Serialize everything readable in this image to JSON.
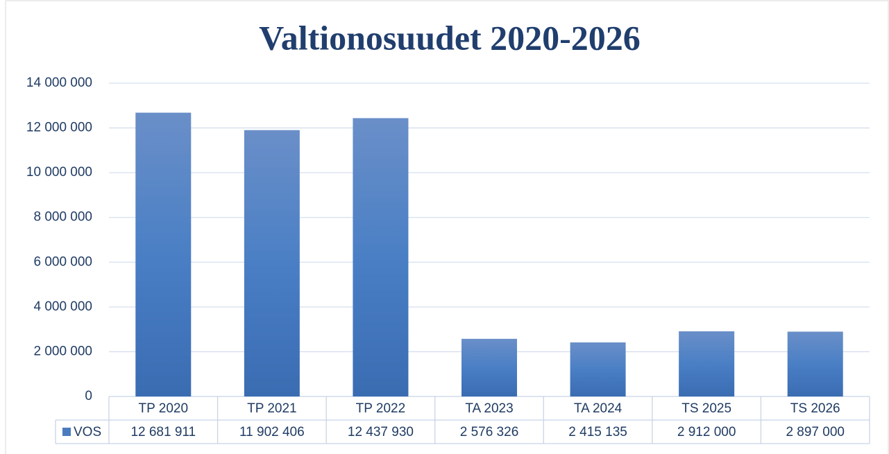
{
  "chart_data": {
    "type": "bar",
    "title": "Valtionosuudet 2020-2026",
    "categories": [
      "TP 2020",
      "TP 2021",
      "TP 2022",
      "TA 2023",
      "TA 2024",
      "TS 2025",
      "TS 2026"
    ],
    "series": [
      {
        "name": "VOS",
        "color": "#4a7bbf",
        "values": [
          12681911,
          11902406,
          12437930,
          2576326,
          2415135,
          2912000,
          2897000
        ],
        "value_labels": [
          "12 681 911",
          "11 902 406",
          "12 437 930",
          "2 576 326",
          "2 415 135",
          "2 912 000",
          "2 897 000"
        ]
      }
    ],
    "ylim": [
      0,
      14000000
    ],
    "yticks": [
      0,
      {
        "value": 2000000,
        "label": "2 000 000"
      },
      {
        "value": 4000000,
        "label": "4 000 000"
      },
      {
        "value": 6000000,
        "label": "6 000 000"
      },
      {
        "value": 8000000,
        "label": "8 000 000"
      },
      {
        "value": 10000000,
        "label": "10 000 000"
      },
      {
        "value": 12000000,
        "label": "12 000 000"
      },
      {
        "value": 14000000,
        "label": "14 000 000"
      }
    ],
    "grid": true
  }
}
